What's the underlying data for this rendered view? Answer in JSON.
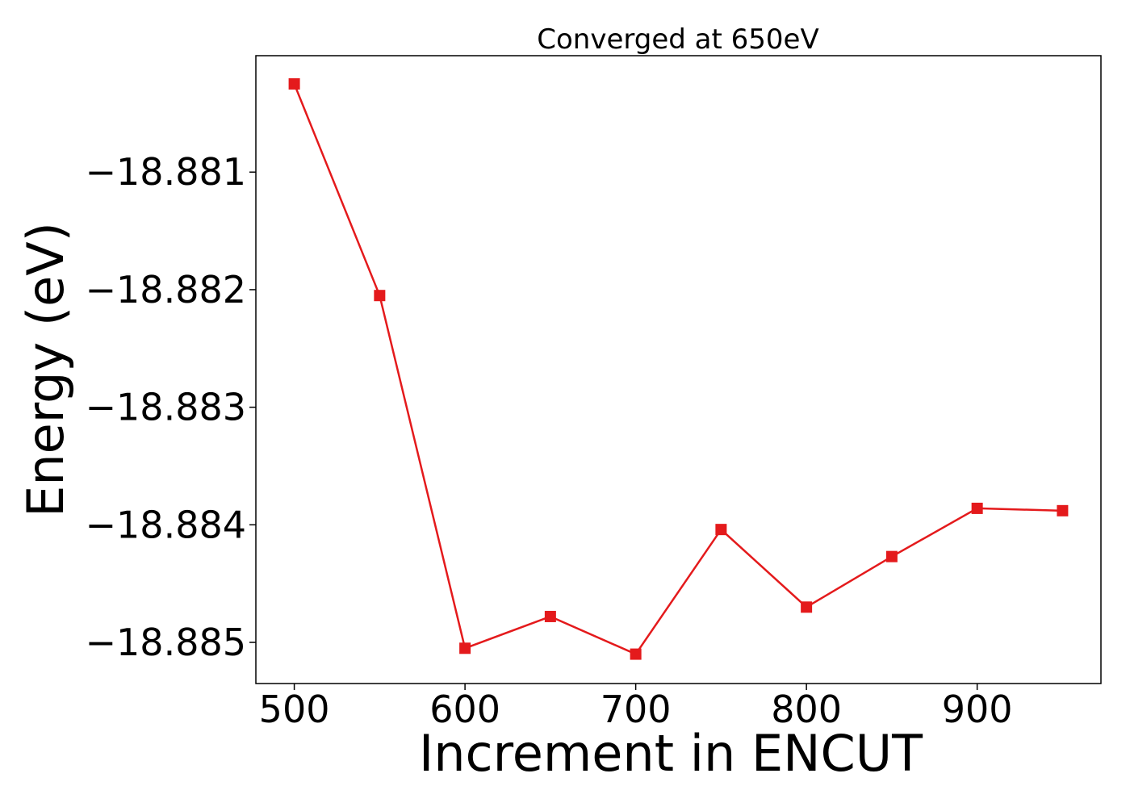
{
  "chart_data": {
    "type": "line",
    "title": "Converged at 650eV",
    "xlabel": "Increment in ENCUT",
    "ylabel": "Energy (eV)",
    "x": [
      500,
      550,
      600,
      650,
      700,
      750,
      800,
      850,
      900,
      950
    ],
    "series": [
      {
        "marker": "square",
        "color": "#e41a1c",
        "values": [
          -18.88025,
          -18.88205,
          -18.88505,
          -18.88478,
          -18.8851,
          -18.88404,
          -18.8847,
          -18.88427,
          -18.88386,
          -18.88388
        ]
      }
    ],
    "xlim": [
      477.5,
      972.5
    ],
    "ylim": [
      -18.88535,
      -18.88001
    ],
    "xticks": [
      500,
      600,
      700,
      800,
      900
    ],
    "xtick_labels": [
      "500",
      "600",
      "700",
      "800",
      "900"
    ],
    "yticks": [
      -18.881,
      -18.882,
      -18.883,
      -18.884,
      -18.885
    ],
    "ytick_labels": [
      "−18.881",
      "−18.882",
      "−18.883",
      "−18.884",
      "−18.885"
    ],
    "grid": false,
    "legend": false
  }
}
